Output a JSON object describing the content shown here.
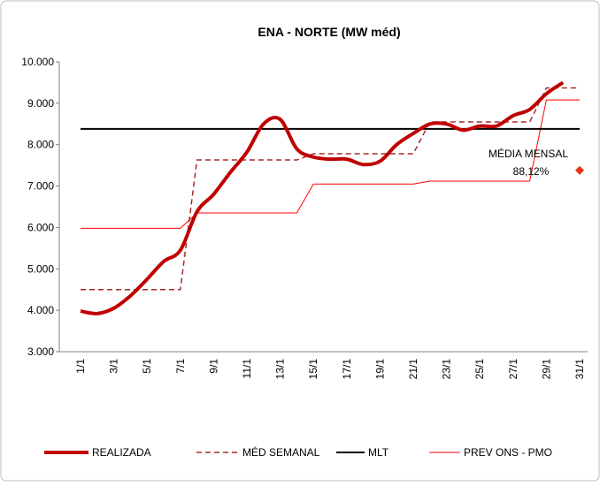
{
  "chart_data": {
    "type": "line",
    "title": "ENA - NORTE (MW méd)",
    "categories": [
      "1/1",
      null,
      "3/1",
      null,
      "5/1",
      null,
      "7/1",
      null,
      "9/1",
      null,
      "11/1",
      null,
      "13/1",
      null,
      "15/1",
      null,
      "17/1",
      null,
      "19/1",
      null,
      "21/1",
      null,
      "23/1",
      null,
      "25/1",
      null,
      "27/1",
      null,
      "29/1",
      null,
      "31/1"
    ],
    "ylim": [
      3000,
      10000
    ],
    "yticks": [
      {
        "value": 3000,
        "label": "3.000"
      },
      {
        "value": 4000,
        "label": "4.000"
      },
      {
        "value": 5000,
        "label": "5.000"
      },
      {
        "value": 6000,
        "label": "6.000"
      },
      {
        "value": 7000,
        "label": "7.000"
      },
      {
        "value": 8000,
        "label": "8.000"
      },
      {
        "value": 9000,
        "label": "9.000"
      },
      {
        "value": 10000,
        "label": "10.000"
      }
    ],
    "grid": false,
    "series": [
      {
        "name": "REALIZADA",
        "color": "#c00000",
        "width": 4,
        "smooth": true,
        "values": [
          3980,
          3920,
          4050,
          4350,
          4750,
          5180,
          5450,
          6380,
          6800,
          7330,
          7820,
          8500,
          8610,
          7900,
          7700,
          7650,
          7650,
          7520,
          7600,
          8000,
          8270,
          8500,
          8500,
          8350,
          8450,
          8450,
          8700,
          8850,
          9230,
          9500,
          null
        ]
      },
      {
        "name": "MÉD SEMANAL",
        "color": "#a52a2a",
        "width": 1.5,
        "dash": "6 4",
        "values": [
          4500,
          4500,
          4500,
          4500,
          4500,
          4500,
          4500,
          7630,
          7630,
          7630,
          7630,
          7630,
          7630,
          7630,
          7780,
          7780,
          7780,
          7780,
          7780,
          7780,
          7780,
          8550,
          8550,
          8550,
          8550,
          8550,
          8550,
          8550,
          9370,
          9370,
          9370
        ]
      },
      {
        "name": "MLT",
        "color": "#000000",
        "width": 2,
        "values": [
          8380,
          8380,
          8380,
          8380,
          8380,
          8380,
          8380,
          8380,
          8380,
          8380,
          8380,
          8380,
          8380,
          8380,
          8380,
          8380,
          8380,
          8380,
          8380,
          8380,
          8380,
          8380,
          8380,
          8380,
          8380,
          8380,
          8380,
          8380,
          8380,
          8380,
          8380
        ]
      },
      {
        "name": "PREV ONS - PMO",
        "color": "#ff0000",
        "width": 1,
        "values": [
          5980,
          5980,
          5980,
          5980,
          5980,
          5980,
          5980,
          6350,
          6350,
          6350,
          6350,
          6350,
          6350,
          6350,
          7050,
          7050,
          7050,
          7050,
          7050,
          7050,
          7050,
          7120,
          7120,
          7120,
          7120,
          7120,
          7120,
          7120,
          9080,
          9080,
          9080
        ]
      }
    ],
    "marker": {
      "x": "31/1",
      "value": 7380,
      "color": "#e8341c"
    },
    "annotations": [
      "MÉDIA MENSAL",
      "88,12%"
    ],
    "legend": "bottom"
  }
}
